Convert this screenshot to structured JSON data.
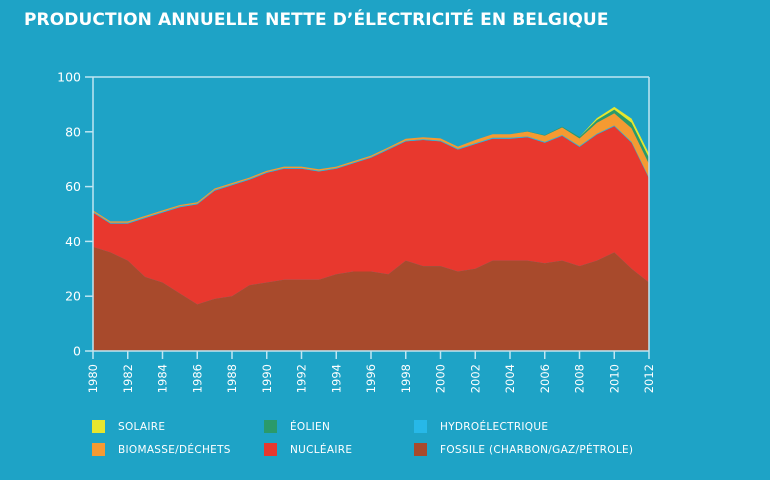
{
  "chart_data": {
    "type": "area",
    "stacked": true,
    "title": "PRODUCTION ANNUELLE NETTE D’ÉLECTRICITÉ EN BELGIQUE",
    "xlabel": "",
    "ylabel": "",
    "ylim": [
      0,
      100
    ],
    "xlim": [
      1980,
      2012
    ],
    "yticks": [
      0,
      20,
      40,
      60,
      80,
      100
    ],
    "xticks": [
      1980,
      1982,
      1984,
      1986,
      1988,
      1990,
      1992,
      1994,
      1996,
      1998,
      2000,
      2002,
      2004,
      2006,
      2008,
      2010,
      2012
    ],
    "grid": false,
    "legend_position": "bottom",
    "x": [
      1980,
      1981,
      1982,
      1983,
      1984,
      1985,
      1986,
      1987,
      1988,
      1989,
      1990,
      1991,
      1992,
      1993,
      1994,
      1995,
      1996,
      1997,
      1998,
      1999,
      2000,
      2001,
      2002,
      2003,
      2004,
      2005,
      2006,
      2007,
      2008,
      2009,
      2010,
      2011,
      2012
    ],
    "series": [
      {
        "name": "FOSSILE (CHARBON/GAZ/PÉTROLE)",
        "color": "#a84a2c",
        "values": [
          38,
          36,
          33,
          27,
          25,
          21,
          17,
          19,
          20,
          24,
          25,
          26,
          26,
          26,
          28,
          29,
          29,
          28,
          33,
          31,
          31,
          29,
          30,
          33,
          33,
          33,
          32,
          33,
          31,
          33,
          36,
          30,
          25
        ]
      },
      {
        "name": "NUCLÉAIRE",
        "color": "#e8382e",
        "values": [
          12.5,
          10.5,
          13.5,
          21.5,
          25.5,
          31.5,
          36.5,
          39.5,
          40.5,
          38.5,
          40,
          40.5,
          40.5,
          39.5,
          38.5,
          39.5,
          41.5,
          45.5,
          43.5,
          46,
          45.5,
          44.5,
          45.5,
          44.5,
          44.5,
          45,
          44,
          45.5,
          43.5,
          46,
          46,
          46,
          38
        ]
      },
      {
        "name": "HYDROÉLECTRIQUE",
        "color": "#27b8e8",
        "values": [
          0.3,
          0.3,
          0.3,
          0.3,
          0.3,
          0.3,
          0.3,
          0.3,
          0.3,
          0.3,
          0.3,
          0.3,
          0.3,
          0.3,
          0.3,
          0.3,
          0.3,
          0.3,
          0.3,
          0.3,
          0.3,
          0.3,
          0.3,
          0.3,
          0.3,
          0.3,
          0.3,
          0.3,
          0.3,
          0.3,
          0.3,
          0.3,
          0.3
        ]
      },
      {
        "name": "BIOMASSE/DÉCHETS",
        "color": "#f59a32",
        "values": [
          0.5,
          0.5,
          0.5,
          0.5,
          0.5,
          0.5,
          0.5,
          0.5,
          0.5,
          0.5,
          0.5,
          0.5,
          0.5,
          0.5,
          0.5,
          0.5,
          0.5,
          0.5,
          0.7,
          0.7,
          0.8,
          0.8,
          1.2,
          1.3,
          1.3,
          1.8,
          2.3,
          2.8,
          2.8,
          4,
          4.5,
          5,
          5
        ]
      },
      {
        "name": "ÉOLIEN",
        "color": "#2a9a6a",
        "values": [
          0,
          0,
          0,
          0,
          0,
          0,
          0,
          0,
          0,
          0,
          0,
          0,
          0,
          0,
          0,
          0,
          0,
          0,
          0,
          0,
          0,
          0,
          0,
          0,
          0,
          0.1,
          0.2,
          0.3,
          0.5,
          1,
          1.3,
          2,
          2.2
        ]
      },
      {
        "name": "SOLAIRE",
        "color": "#e6e62e",
        "values": [
          0,
          0,
          0,
          0,
          0,
          0,
          0,
          0,
          0,
          0,
          0,
          0,
          0,
          0,
          0,
          0,
          0,
          0,
          0,
          0,
          0,
          0,
          0,
          0,
          0,
          0,
          0,
          0,
          0,
          0.7,
          1,
          1.5,
          1.5
        ]
      }
    ]
  },
  "legend": [
    {
      "label": "SOLAIRE",
      "color": "#e6e62e"
    },
    {
      "label": "ÉOLIEN",
      "color": "#2a9a6a"
    },
    {
      "label": "HYDROÉLECTRIQUE",
      "color": "#27b8e8"
    },
    {
      "label": "BIOMASSE/DÉCHETS",
      "color": "#f59a32"
    },
    {
      "label": "NUCLÉAIRE",
      "color": "#e8382e"
    },
    {
      "label": "FOSSILE (CHARBON/GAZ/PÉTROLE)",
      "color": "#a84a2c"
    }
  ]
}
